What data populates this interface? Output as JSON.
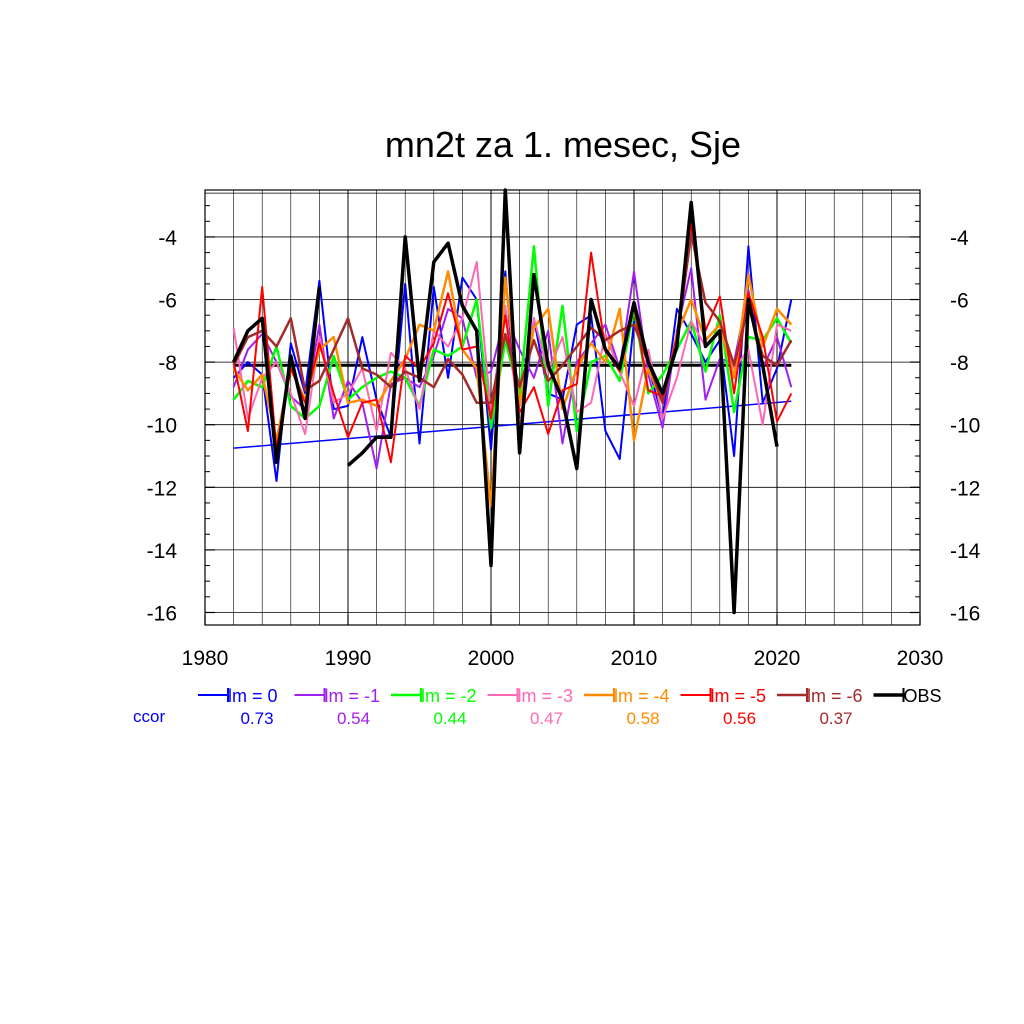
{
  "chart_data": {
    "type": "line",
    "title": "mn2t za 1. mesec, Sje",
    "xlabel": "",
    "ylabel": "",
    "xlim": [
      1980,
      2030
    ],
    "ylim": [
      -16.4,
      -2.5
    ],
    "xticks": [
      1980,
      1990,
      2000,
      2010,
      2020,
      2030
    ],
    "yticks": [
      -4,
      -6,
      -8,
      -10,
      -12,
      -14,
      -16
    ],
    "grid": true,
    "corr_label": "ccor",
    "x": [
      1982,
      1983,
      1984,
      1985,
      1986,
      1987,
      1988,
      1989,
      1990,
      1991,
      1992,
      1993,
      1994,
      1995,
      1996,
      1997,
      1998,
      1999,
      2000,
      2001,
      2002,
      2003,
      2004,
      2005,
      2006,
      2007,
      2008,
      2009,
      2010,
      2011,
      2012,
      2013,
      2014,
      2015,
      2016,
      2017,
      2018,
      2019,
      2020,
      2021
    ],
    "series": [
      {
        "name": "lm = 0",
        "color": "#0000ff",
        "ccor": "0.73",
        "width": 2,
        "values": [
          -8.5,
          -8.0,
          -8.4,
          -11.8,
          -7.4,
          -9.0,
          -5.4,
          -9.5,
          -9.4,
          -7.2,
          -9.2,
          -10.4,
          -5.5,
          -10.6,
          -5.6,
          -8.5,
          -5.3,
          -6.0,
          -10.8,
          -5.1,
          -10.6,
          -6.6,
          -9.0,
          -9.2,
          -6.8,
          -6.5,
          -10.2,
          -11.1,
          -6.7,
          -8.1,
          -9.8,
          -6.3,
          -7.1,
          -8.0,
          -7.3,
          -11.0,
          -4.3,
          -9.3,
          -8.2,
          -6.0
        ]
      },
      {
        "name": "lm = -1",
        "color": "#a020f0",
        "ccor": "0.54",
        "width": 2,
        "values": [
          -8.8,
          -7.6,
          -7.1,
          -8.0,
          -9.1,
          -9.5,
          -6.8,
          -9.8,
          -8.6,
          -9.3,
          -11.4,
          -8.7,
          -8.5,
          -8.8,
          -7.8,
          -6.3,
          -6.6,
          -8.5,
          -8.3,
          -6.5,
          -7.6,
          -8.5,
          -7.0,
          -10.6,
          -8.0,
          -7.4,
          -6.8,
          -8.2,
          -5.1,
          -8.4,
          -10.1,
          -7.0,
          -5.0,
          -9.2,
          -7.9,
          -8.0,
          -5.7,
          -8.2,
          -7.2,
          -8.8
        ]
      },
      {
        "name": "lm = -2",
        "color": "#00ff00",
        "ccor": "0.44",
        "width": 2.5,
        "values": [
          -9.2,
          -8.6,
          -8.8,
          -7.5,
          -9.4,
          -9.8,
          -9.4,
          -7.8,
          -9.2,
          -8.8,
          -8.5,
          -8.3,
          -8.5,
          -9.4,
          -7.6,
          -7.8,
          -7.5,
          -6.0,
          -10.1,
          -7.3,
          -9.1,
          -4.3,
          -9.4,
          -6.2,
          -10.2,
          -8.0,
          -7.8,
          -8.6,
          -6.3,
          -9.0,
          -8.4,
          -7.6,
          -6.7,
          -8.3,
          -6.5,
          -9.6,
          -7.2,
          -7.3,
          -6.6,
          -7.4
        ]
      },
      {
        "name": "lm = -3",
        "color": "#ff69b4",
        "ccor": "0.47",
        "width": 2,
        "values": [
          -6.9,
          -9.8,
          -8.5,
          -8.0,
          -9.0,
          -10.3,
          -7.2,
          -9.3,
          -9.0,
          -8.2,
          -10.2,
          -7.7,
          -8.2,
          -9.5,
          -7.0,
          -7.5,
          -6.6,
          -4.8,
          -9.6,
          -6.2,
          -10.1,
          -6.6,
          -8.3,
          -7.2,
          -9.6,
          -9.3,
          -7.1,
          -8.3,
          -9.4,
          -7.6,
          -9.8,
          -8.5,
          -6.7,
          -7.5,
          -7.0,
          -8.2,
          -7.6,
          -10.0,
          -6.8,
          -7.0
        ]
      },
      {
        "name": "lm = -4",
        "color": "#ff8c00",
        "ccor": "0.58",
        "width": 2.5,
        "values": [
          -8.2,
          -8.9,
          -8.4,
          -10.5,
          -8.2,
          -9.2,
          -7.6,
          -7.2,
          -9.3,
          -9.2,
          -9.4,
          -8.6,
          -7.9,
          -6.8,
          -7.0,
          -5.1,
          -7.6,
          -8.2,
          -12.6,
          -5.3,
          -9.4,
          -6.9,
          -6.3,
          -9.5,
          -8.2,
          -7.4,
          -8.0,
          -6.3,
          -10.5,
          -8.2,
          -9.3,
          -7.1,
          -6.0,
          -7.3,
          -6.8,
          -8.5,
          -5.2,
          -7.5,
          -6.3,
          -6.8
        ]
      },
      {
        "name": "lm = -5",
        "color": "#ff0000",
        "ccor": "0.56",
        "width": 2,
        "values": [
          -8.0,
          -10.2,
          -5.6,
          -10.8,
          -8.2,
          -9.3,
          -7.4,
          -9.0,
          -10.4,
          -9.3,
          -9.2,
          -11.2,
          -7.8,
          -8.2,
          -7.4,
          -5.8,
          -7.6,
          -7.5,
          -9.8,
          -6.5,
          -9.6,
          -8.8,
          -10.3,
          -8.9,
          -8.7,
          -4.5,
          -7.6,
          -8.3,
          -6.2,
          -8.9,
          -9.1,
          -7.2,
          -3.6,
          -7.0,
          -5.9,
          -9.0,
          -5.8,
          -7.2,
          -9.9,
          -9.0
        ]
      },
      {
        "name": "lm = -6",
        "color": "#a52a2a",
        "ccor": "0.37",
        "width": 2.5,
        "values": [
          -8.1,
          -7.2,
          -7.0,
          -7.5,
          -6.6,
          -8.9,
          -8.6,
          -7.6,
          -6.6,
          -8.2,
          -8.4,
          -8.8,
          -8.3,
          -8.5,
          -8.8,
          -7.9,
          -8.4,
          -9.3,
          -9.3,
          -7.1,
          -8.8,
          -7.3,
          -8.6,
          -8.1,
          -7.5,
          -6.9,
          -7.3,
          -7.0,
          -6.8,
          -8.0,
          -9.3,
          -7.3,
          -3.9,
          -6.1,
          -6.7,
          -8.1,
          -6.2,
          -7.8,
          -8.1,
          -7.3
        ]
      },
      {
        "name": "OBS",
        "color": "#000000",
        "ccor": "",
        "width": 3.5,
        "values": [
          -8.0,
          -7.0,
          -6.6,
          -11.2,
          -7.8,
          -9.8,
          -5.6,
          null,
          -11.3,
          -10.9,
          -10.4,
          -10.4,
          -4.0,
          -8.6,
          -4.8,
          -4.2,
          -6.2,
          -7.0,
          -14.5,
          -2.5,
          -10.9,
          -5.2,
          -8.1,
          -9.2,
          -11.4,
          -6.0,
          -7.6,
          -8.2,
          -6.1,
          -8.0,
          -9.0,
          -7.5,
          -2.9,
          -7.5,
          -7.0,
          -16.0,
          -6.0,
          -8.1,
          -10.7,
          null
        ]
      }
    ],
    "reference_lines": [
      {
        "name": "OBS mean",
        "color": "#000000",
        "x": [
          1982,
          2021
        ],
        "y": [
          -8.1,
          -8.1
        ],
        "width": 3
      },
      {
        "name": "lm = 0 trend",
        "color": "#0000ff",
        "x": [
          1982,
          2021
        ],
        "y": [
          -10.75,
          -9.25
        ],
        "width": 1.5
      }
    ]
  }
}
